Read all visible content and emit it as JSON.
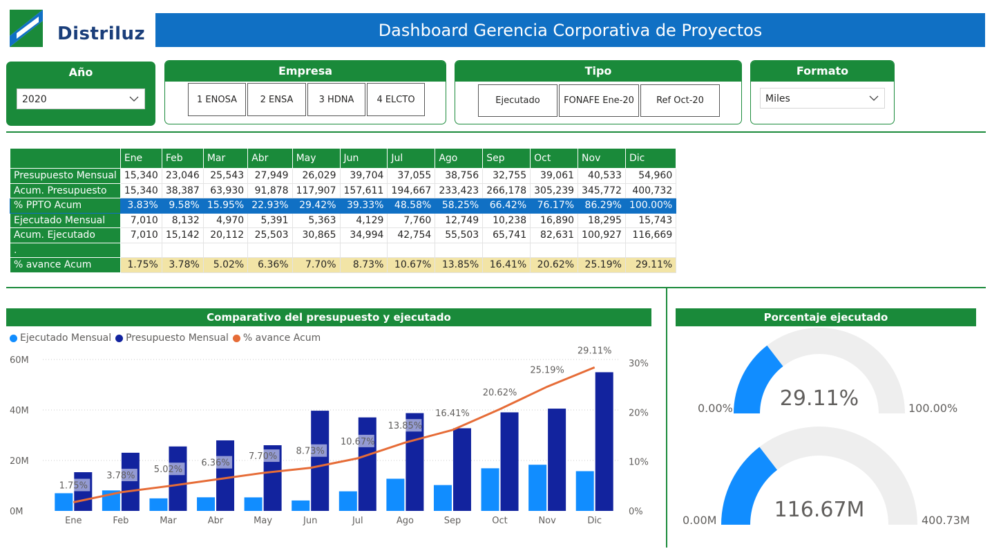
{
  "header": {
    "logo_text": "Distriluz",
    "title": "Dashboard Gerencia Corporativa de Proyectos"
  },
  "slicers": {
    "year": {
      "title": "Año",
      "selected": "2020"
    },
    "empresa": {
      "title": "Empresa",
      "options": [
        "1 ENOSA",
        "2 ENSA",
        "3 HDNA",
        "4 ELCTO"
      ]
    },
    "tipo": {
      "title": "Tipo",
      "options": [
        "Ejecutado",
        "FONAFE Ene-20",
        "Ref Oct-20"
      ]
    },
    "formato": {
      "title": "Formato",
      "selected": "Miles"
    }
  },
  "table": {
    "months": [
      "Ene",
      "Feb",
      "Mar",
      "Abr",
      "May",
      "Jun",
      "Jul",
      "Ago",
      "Sep",
      "Oct",
      "Nov",
      "Dic"
    ],
    "rows": [
      {
        "label": "Presupuesto Mensual",
        "values": [
          "15,340",
          "23,046",
          "25,543",
          "27,949",
          "26,029",
          "39,704",
          "37,055",
          "38,756",
          "32,755",
          "39,061",
          "40,533",
          "54,960"
        ]
      },
      {
        "label": "Acum. Presupuesto",
        "values": [
          "15,340",
          "38,387",
          "63,930",
          "91,878",
          "117,907",
          "157,611",
          "194,667",
          "233,423",
          "266,178",
          "305,239",
          "345,772",
          "400,732"
        ]
      },
      {
        "label": "% PPTO Acum",
        "values": [
          "3.83%",
          "9.58%",
          "15.95%",
          "22.93%",
          "29.42%",
          "39.33%",
          "48.58%",
          "58.25%",
          "66.42%",
          "76.17%",
          "86.29%",
          "100.00%"
        ]
      },
      {
        "label": "Ejecutado Mensual",
        "values": [
          "7,010",
          "8,132",
          "4,970",
          "5,391",
          "5,363",
          "4,129",
          "7,760",
          "12,749",
          "10,238",
          "16,890",
          "18,295",
          "15,743"
        ]
      },
      {
        "label": "Acum. Ejecutado",
        "values": [
          "7,010",
          "15,142",
          "20,112",
          "25,503",
          "30,865",
          "34,994",
          "42,754",
          "55,503",
          "65,741",
          "82,631",
          "100,927",
          "116,669"
        ]
      },
      {
        "label": ".",
        "values": [
          "",
          "",
          "",
          "",
          "",
          "",
          "",
          "",
          "",
          "",
          "",
          ""
        ]
      },
      {
        "label": "% avance Acum",
        "values": [
          "1.75%",
          "3.78%",
          "5.02%",
          "6.36%",
          "7.70%",
          "8.73%",
          "10.67%",
          "13.85%",
          "16.41%",
          "20.62%",
          "25.19%",
          "29.11%"
        ]
      }
    ]
  },
  "chart_section": {
    "title": "Comparativo del presupuesto y ejecutado"
  },
  "chart_data": {
    "type": "bar",
    "categories": [
      "Ene",
      "Feb",
      "Mar",
      "Abr",
      "May",
      "Jun",
      "Jul",
      "Ago",
      "Sep",
      "Oct",
      "Nov",
      "Dic"
    ],
    "series": [
      {
        "name": "Ejecutado Mensual",
        "type": "bar",
        "color": "#118dff",
        "values": [
          7.01,
          8.132,
          4.97,
          5.391,
          5.363,
          4.129,
          7.76,
          12.749,
          10.238,
          16.89,
          18.295,
          15.743
        ]
      },
      {
        "name": "Presupuesto Mensual",
        "type": "bar",
        "color": "#12239e",
        "values": [
          15.34,
          23.046,
          25.543,
          27.949,
          26.029,
          39.704,
          37.055,
          38.756,
          32.755,
          39.061,
          40.533,
          54.96
        ]
      },
      {
        "name": "% avance Acum",
        "type": "line",
        "axis": "right",
        "color": "#e66c37",
        "values": [
          1.75,
          3.78,
          5.02,
          6.36,
          7.7,
          8.73,
          10.67,
          13.85,
          16.41,
          20.62,
          25.19,
          29.11
        ]
      }
    ],
    "line_labels": [
      "1.75%",
      "3.78%",
      "5.02%",
      "6.36%",
      "7.70%",
      "8.73%",
      "10.67%",
      "13.85%",
      "16.41%",
      "20.62%",
      "25.19%",
      "29.11%"
    ],
    "y_left": {
      "ticks": [
        "0M",
        "20M",
        "40M",
        "60M"
      ],
      "tick_values": [
        0,
        20,
        40,
        60
      ],
      "ylim": [
        0,
        60
      ]
    },
    "y_right": {
      "ticks": [
        "0%",
        "10%",
        "20%",
        "30%"
      ],
      "tick_values": [
        0,
        10,
        20,
        30
      ],
      "ylim": [
        0,
        30
      ]
    },
    "grid": true,
    "legend_position": "top-left"
  },
  "gauge_section": {
    "title": "Porcentaje ejecutado"
  },
  "gauges": [
    {
      "value": 29.11,
      "min": 0,
      "max": 100,
      "value_label": "29.11%",
      "min_label": "0.00%",
      "max_label": "100.00%"
    },
    {
      "value": 116.67,
      "min": 0,
      "max": 400.73,
      "value_label": "116.67M",
      "min_label": "0.00M",
      "max_label": "400.73M"
    }
  ],
  "colors": {
    "green": "#1a8a3a",
    "blue_header": "#1070c4",
    "gauge_fill": "#118dff",
    "gauge_track": "#eeeeee",
    "highlight_yellow": "#f2e4a6"
  }
}
